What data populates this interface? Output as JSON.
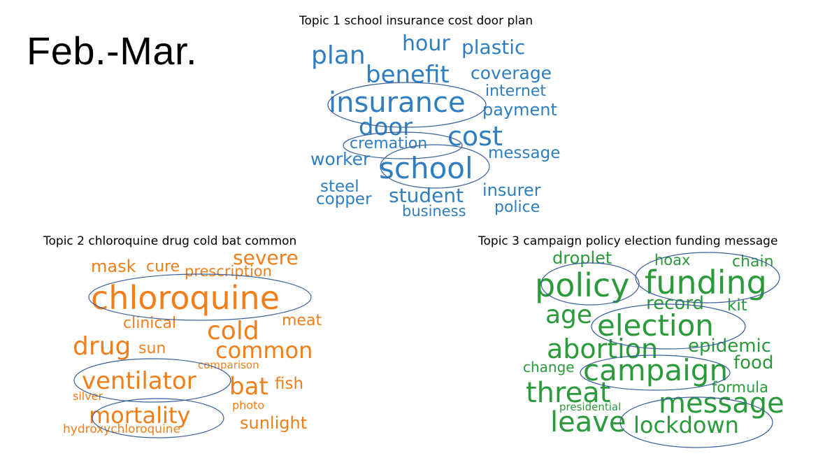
{
  "slide": {
    "title": "Feb.-Mar."
  },
  "topics": [
    {
      "title": "Topic 1 school insurance cost door plan",
      "color": "#2f7ec0",
      "words": [
        "plan",
        "hour",
        "plastic",
        "benefit",
        "coverage",
        "internet",
        "insurance",
        "payment",
        "door",
        "cost",
        "cremation",
        "message",
        "worker",
        "school",
        "steel",
        "insurer",
        "copper",
        "student",
        "business",
        "police"
      ],
      "circled": [
        "insurance",
        "cremation",
        "school"
      ]
    },
    {
      "title": "Topic 2 chloroquine drug cold bat common",
      "color": "#f07f1b",
      "words": [
        "severe",
        "mask",
        "cure",
        "prescription",
        "chloroquine",
        "clinical",
        "meat",
        "cold",
        "drug",
        "sun",
        "common",
        "comparison",
        "ventilator",
        "bat",
        "fish",
        "silver",
        "photo",
        "mortality",
        "sunlight",
        "hydroxychloroquine"
      ],
      "circled": [
        "chloroquine",
        "ventilator",
        "mortality"
      ]
    },
    {
      "title": "Topic 3 campaign policy election funding message",
      "color": "#2a9a3a",
      "words": [
        "droplet",
        "hoax",
        "chain",
        "policy",
        "funding",
        "record",
        "kit",
        "age",
        "election",
        "abortion",
        "epidemic",
        "change",
        "campaign",
        "food",
        "threat",
        "formula",
        "message",
        "presidential",
        "leave",
        "lockdown"
      ],
      "circled": [
        "policy",
        "funding",
        "election",
        "campaign",
        "lockdown"
      ]
    }
  ]
}
